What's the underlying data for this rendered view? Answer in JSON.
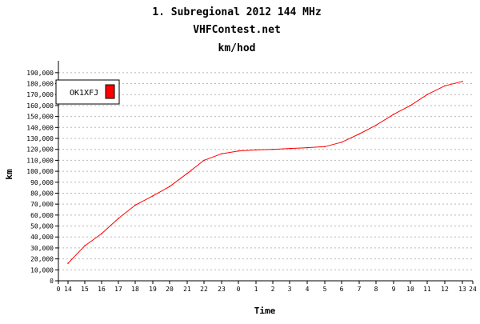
{
  "chart_data": {
    "type": "line",
    "title": "1. Subregional 2012 144 MHz",
    "subtitle": "VHFContest.net",
    "subtitle2": "km/hod",
    "xlabel": "Time",
    "ylabel": "km",
    "x_ticks": [
      "0",
      "14",
      "15",
      "16",
      "17",
      "18",
      "19",
      "20",
      "21",
      "22",
      "23",
      "0",
      "1",
      "2",
      "3",
      "4",
      "5",
      "6",
      "7",
      "8",
      "9",
      "10",
      "11",
      "12",
      "13",
      "24"
    ],
    "y_ticks": [
      "0",
      "10,000",
      "20,000",
      "30,000",
      "40,000",
      "50,000",
      "60,000",
      "70,000",
      "80,000",
      "90,000",
      "100,000",
      "110,000",
      "120,000",
      "130,000",
      "140,000",
      "150,000",
      "160,000",
      "170,000",
      "180,000",
      "190,000"
    ],
    "ylim": [
      0,
      195000
    ],
    "grid": true,
    "legend_position": "top-left",
    "series": [
      {
        "name": "OK1XFJ",
        "color": "#ff0000",
        "x": [
          "14",
          "15",
          "16",
          "17",
          "18",
          "19",
          "20",
          "21",
          "22",
          "23",
          "0",
          "1",
          "2",
          "3",
          "4",
          "5",
          "6",
          "7",
          "8",
          "9",
          "10",
          "11",
          "12",
          "13"
        ],
        "values": [
          16000,
          32000,
          43000,
          57000,
          69000,
          77500,
          86000,
          98000,
          110000,
          116000,
          118500,
          119500,
          120000,
          120800,
          121500,
          122500,
          126500,
          134000,
          142000,
          152000,
          160000,
          170000,
          178000,
          182000
        ]
      }
    ]
  }
}
